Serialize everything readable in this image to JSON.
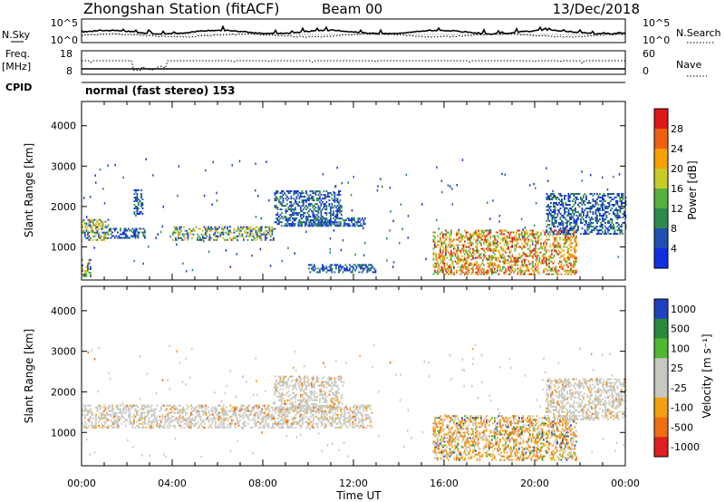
{
  "header": {
    "station_title": "Zhongshan Station (fitACF)",
    "beam": "Beam 00",
    "date": "13/Dec/2018"
  },
  "noise_panel": {
    "left_label": "N.Sky",
    "right_label": "N.Search",
    "left_ticks": [
      "10^5",
      "10^0"
    ],
    "right_ticks": [
      "10^5",
      "10^0"
    ]
  },
  "freq_panel": {
    "left_label_1": "Freq.",
    "left_label_2": "[MHz]",
    "right_label": "Nave",
    "left_ticks": [
      "18",
      "8"
    ],
    "right_ticks": [
      "60",
      "0"
    ]
  },
  "cpid": {
    "label": "CPID",
    "text": "normal (fast stereo) 153"
  },
  "colors": {
    "power_scale": [
      "#1030e0",
      "#2050b0",
      "#2e8a4a",
      "#55b040",
      "#c8cc28",
      "#f8a000",
      "#f06010",
      "#e01818"
    ],
    "velocity_scale": [
      "#2040c0",
      "#2a8a40",
      "#50b830",
      "#c8c8c0",
      "#c8c8c0",
      "#f5a010",
      "#ee7010",
      "#e02020"
    ]
  },
  "chart_data": [
    {
      "type": "heatmap",
      "name": "power",
      "ylabel": "Slant Range [km]",
      "ylim": [
        180,
        4600
      ],
      "yticks": [
        "1000",
        "2000",
        "3000",
        "4000"
      ],
      "xlim": [
        0,
        24
      ],
      "colorbar": {
        "label": "Power [dB]",
        "range": [
          0,
          32
        ],
        "ticks": [
          "4",
          "8",
          "12",
          "16",
          "20",
          "24",
          "28"
        ]
      },
      "echo_regions": [
        {
          "t": [
            0.0,
            1.2
          ],
          "r": [
            1150,
            1650
          ],
          "level": "mixed"
        },
        {
          "t": [
            0.0,
            0.4
          ],
          "r": [
            250,
            700
          ],
          "level": "mixed"
        },
        {
          "t": [
            1.2,
            2.8
          ],
          "r": [
            1200,
            1450
          ],
          "level": "low"
        },
        {
          "t": [
            2.3,
            2.7
          ],
          "r": [
            1750,
            2400
          ],
          "level": "low"
        },
        {
          "t": [
            4.0,
            8.5
          ],
          "r": [
            1150,
            1500
          ],
          "level": "mixed"
        },
        {
          "t": [
            8.5,
            11.5
          ],
          "r": [
            1500,
            2400
          ],
          "level": "low"
        },
        {
          "t": [
            9.0,
            12.5
          ],
          "r": [
            1500,
            1700
          ],
          "level": "low"
        },
        {
          "t": [
            10.0,
            13.0
          ],
          "r": [
            350,
            550
          ],
          "level": "low"
        },
        {
          "t": [
            15.5,
            21.8
          ],
          "r": [
            300,
            1400
          ],
          "level": "high"
        },
        {
          "t": [
            20.5,
            24.0
          ],
          "r": [
            1300,
            2300
          ],
          "level": "low"
        }
      ]
    },
    {
      "type": "heatmap",
      "name": "velocity",
      "ylabel": "Slant Range [km]",
      "ylim": [
        180,
        4600
      ],
      "yticks": [
        "1000",
        "2000",
        "3000",
        "4000"
      ],
      "xlim": [
        0,
        24
      ],
      "xticks": [
        "00:00",
        "04:00",
        "08:00",
        "12:00",
        "16:00",
        "20:00",
        "00:00"
      ],
      "xlabel": "Time UT",
      "colorbar": {
        "label": "Velocity [m s⁻¹]",
        "ticks": [
          "1000",
          "500",
          "100",
          "25",
          "-25",
          "-100",
          "-500",
          "-1000"
        ]
      },
      "echo_regions": [
        {
          "t": [
            0.0,
            12.8
          ],
          "r": [
            1100,
            1650
          ],
          "level": "grey"
        },
        {
          "t": [
            8.5,
            11.5
          ],
          "r": [
            1500,
            2400
          ],
          "level": "grey"
        },
        {
          "t": [
            15.5,
            21.8
          ],
          "r": [
            300,
            1400
          ],
          "level": "mixed-orange"
        },
        {
          "t": [
            20.5,
            24.0
          ],
          "r": [
            1300,
            2300
          ],
          "level": "grey"
        }
      ]
    }
  ]
}
